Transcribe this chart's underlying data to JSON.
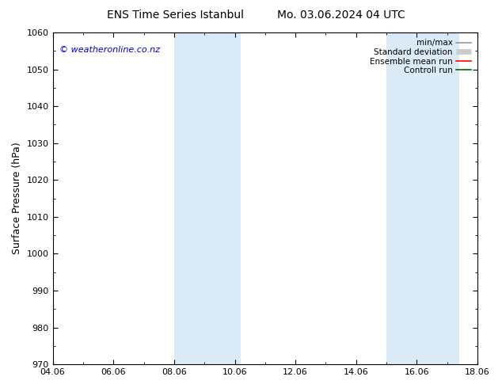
{
  "title_left": "ENS Time Series Istanbul",
  "title_right": "Mo. 03.06.2024 04 UTC",
  "ylabel": "Surface Pressure (hPa)",
  "ylim": [
    970,
    1060
  ],
  "yticks": [
    970,
    980,
    990,
    1000,
    1010,
    1020,
    1030,
    1040,
    1050,
    1060
  ],
  "xlim_start": 0,
  "xlim_end": 14,
  "xtick_labels": [
    "04.06",
    "06.06",
    "08.06",
    "10.06",
    "12.06",
    "14.06",
    "16.06",
    "18.06"
  ],
  "xtick_positions": [
    0,
    2,
    4,
    6,
    8,
    10,
    12,
    14
  ],
  "shaded_bands": [
    {
      "x_start": 4.0,
      "x_end": 6.2,
      "color": "#daeaf7"
    },
    {
      "x_start": 11.0,
      "x_end": 13.4,
      "color": "#daeaf7"
    }
  ],
  "copyright_text": "© weatheronline.co.nz",
  "copyright_color": "#0000cc",
  "background_color": "#ffffff",
  "legend_items": [
    {
      "label": "min/max",
      "color": "#999999",
      "lw": 1.2
    },
    {
      "label": "Standard deviation",
      "color": "#cccccc",
      "lw": 5
    },
    {
      "label": "Ensemble mean run",
      "color": "#ff0000",
      "lw": 1.2
    },
    {
      "label": "Controll run",
      "color": "#006600",
      "lw": 1.2
    }
  ],
  "title_fontsize": 10,
  "axis_label_fontsize": 9,
  "tick_fontsize": 8,
  "legend_fontsize": 7.5,
  "copyright_fontsize": 8,
  "figsize": [
    6.34,
    4.9
  ],
  "dpi": 100
}
